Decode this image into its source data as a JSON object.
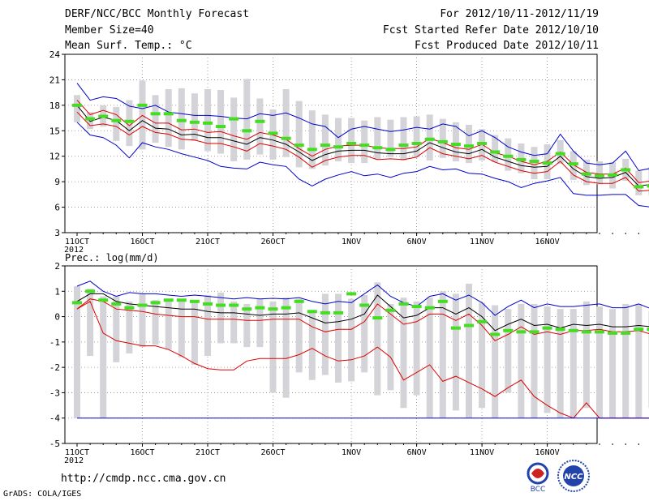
{
  "header": {
    "title": "DERF/NCC/BCC Monthly Forecast",
    "member_size": "Member Size=40",
    "variable": "Mean Surf. Temp.: °C",
    "period": "For 2012/10/11-2012/11/19",
    "fcst_started": "Fcst Started Refer Date 2012/10/10",
    "fcst_produced": "Fcst Produced Date 2012/10/11"
  },
  "footer": {
    "url": "http://cmdp.ncc.cma.gov.cn",
    "grads": "GrADS: COLA/IGES",
    "logo1_text": "BCC",
    "logo2_text": "NCC"
  },
  "colors": {
    "ensemble_mean": "#000000",
    "inner_band": "#dd0000",
    "outer_band": "#0000cc",
    "bar": "#d4d4d8",
    "marker": "#44dd22"
  },
  "chart_data": [
    {
      "type": "line",
      "title": "Mean Surf. Temp.: °C",
      "x_labels": [
        "11OCT\n2012",
        "16OCT",
        "21OCT",
        "26OCT",
        "1NOV",
        "6NOV",
        "11NOV",
        "16NOV"
      ],
      "ylim": [
        3,
        24
      ],
      "yticks": [
        3,
        6,
        9,
        12,
        15,
        18,
        21,
        24
      ],
      "series": [
        {
          "name": "max",
          "color": "#0000cc",
          "values": [
            20.6,
            18.6,
            19,
            18.8,
            17.9,
            17.6,
            18,
            17.2,
            17,
            16.8,
            16.8,
            16.7,
            16.5,
            16.4,
            17,
            16.8,
            17.1,
            16.5,
            15.8,
            15.5,
            14.2,
            15.2,
            15.5,
            15.2,
            14.9,
            15.1,
            15.4,
            15.2,
            15.8,
            15.5,
            14.4,
            15,
            14.2,
            13.1,
            12.5,
            12.1,
            12.3,
            14.6,
            12.6,
            11.2,
            11,
            11.2,
            12.6,
            10.3,
            10.6,
            10.9
          ]
        },
        {
          "name": "upper",
          "color": "#dd0000",
          "values": [
            18.6,
            16.9,
            17.4,
            16.9,
            15.6,
            16.8,
            15.9,
            15.9,
            15.1,
            15.2,
            14.8,
            14.9,
            14.4,
            14,
            14.8,
            14.5,
            14,
            12.9,
            12,
            12.8,
            13.2,
            13.3,
            13.3,
            13,
            12.9,
            12.9,
            13.1,
            14.1,
            13.6,
            13,
            12.8,
            13.4,
            12.4,
            12,
            11.4,
            11,
            11.4,
            12.5,
            11,
            10.1,
            9.9,
            9.9,
            10.6,
            8.9,
            9.1,
            8.6
          ]
        },
        {
          "name": "mean",
          "color": "#000000",
          "values": [
            18,
            16.1,
            16.6,
            16.2,
            15,
            16.2,
            15.3,
            15.2,
            14.5,
            14.6,
            14.2,
            14.2,
            13.8,
            13.4,
            14.2,
            13.9,
            13.4,
            12.5,
            11.5,
            12.2,
            12.6,
            12.7,
            12.7,
            12.4,
            12.3,
            12.3,
            12.6,
            13.6,
            13,
            12.5,
            12.3,
            12.8,
            11.9,
            11.4,
            10.9,
            10.7,
            10.8,
            12,
            10.5,
            9.6,
            9.4,
            9.5,
            10.1,
            8.5,
            8.7,
            8.2
          ]
        },
        {
          "name": "lower",
          "color": "#dd0000",
          "values": [
            17.2,
            15.6,
            15.8,
            15.5,
            14.5,
            15.5,
            14.8,
            14.6,
            14,
            13.9,
            13.5,
            13.5,
            13.1,
            12.6,
            13.5,
            13.2,
            12.8,
            11.9,
            10.7,
            11.5,
            11.9,
            12.1,
            12.1,
            11.6,
            11.7,
            11.6,
            11.9,
            13,
            12.3,
            12,
            11.7,
            12.1,
            11.3,
            10.8,
            10.3,
            10,
            10.2,
            11.4,
            9.8,
            9,
            8.8,
            8.8,
            9.5,
            7.9,
            8,
            7.7
          ]
        },
        {
          "name": "min",
          "color": "#0000cc",
          "values": [
            16,
            14.5,
            14.2,
            13.3,
            11.8,
            13.6,
            13.1,
            12.8,
            12.3,
            11.9,
            11.5,
            10.8,
            10.6,
            10.5,
            11.3,
            11,
            10.8,
            9.3,
            8.5,
            9.3,
            9.8,
            10.2,
            9.7,
            9.9,
            9.5,
            10,
            10.2,
            10.8,
            10.4,
            10.5,
            10,
            9.9,
            9.4,
            9,
            8.3,
            8.8,
            9.1,
            9.5,
            7.6,
            7.4,
            7.4,
            7.5,
            7.5,
            6.2,
            6,
            5.8
          ]
        }
      ],
      "bars_low": [
        16,
        15.2,
        15.5,
        13.8,
        13.2,
        12.8,
        13.6,
        13.1,
        12.8,
        13.8,
        12.6,
        12.3,
        11.4,
        11.6,
        12.2,
        11.6,
        11.9,
        10.7,
        10.5,
        10.9,
        11.4,
        11.2,
        11.2,
        11.6,
        11.9,
        11.5,
        11.9,
        11.5,
        11.8,
        11.4,
        11.2,
        11.5,
        11.3,
        10.3,
        10,
        9.3,
        9.3,
        11.1,
        9.2,
        8.6,
        8.7,
        8.2,
        9.1,
        7.4,
        7.4,
        7.2
      ],
      "bars_high": [
        19.2,
        17.2,
        18,
        17.8,
        18.6,
        20.9,
        19.2,
        19.9,
        20,
        19.4,
        19.9,
        19.8,
        18.9,
        21.1,
        18.8,
        17.5,
        19.9,
        18.5,
        17.4,
        16.9,
        16.5,
        16.5,
        16.2,
        16.6,
        16.3,
        16.6,
        16.7,
        16.9,
        16.4,
        16,
        15.7,
        15.2,
        14.5,
        14.1,
        13.5,
        13.1,
        13.4,
        13.9,
        12.6,
        11.6,
        11.4,
        11.3,
        11.7,
        10.3,
        10.7,
        10.1
      ],
      "markers": [
        18,
        16.4,
        16.7,
        16.2,
        16.1,
        18,
        17,
        17,
        16.2,
        16,
        15.9,
        15.5,
        16.4,
        15,
        16.1,
        14.7,
        14.1,
        13.3,
        12.8,
        13.3,
        13.1,
        13.5,
        13.3,
        13,
        12.8,
        13.3,
        13.5,
        14,
        13.7,
        13.4,
        13.2,
        13.5,
        12.5,
        12,
        11.6,
        11.4,
        11.2,
        12.3,
        11.1,
        9.9,
        9.7,
        9.8,
        10.4,
        8.4,
        8.5,
        8.7
      ]
    },
    {
      "type": "line",
      "title": "Prec.: log(mm/d)",
      "x_labels": [
        "11OCT\n2012",
        "16OCT",
        "21OCT",
        "26OCT",
        "1NOV",
        "6NOV",
        "11NOV",
        "16NOV"
      ],
      "ylim": [
        -5,
        2
      ],
      "yticks": [
        -5,
        -4,
        -3,
        -2,
        -1,
        0,
        1,
        2
      ],
      "series": [
        {
          "name": "max",
          "color": "#0000cc",
          "values": [
            1.2,
            1.4,
            1,
            0.8,
            0.95,
            0.9,
            0.9,
            0.85,
            0.8,
            0.85,
            0.8,
            0.75,
            0.7,
            0.75,
            0.7,
            0.72,
            0.7,
            0.75,
            0.6,
            0.5,
            0.6,
            0.55,
            0.9,
            1.25,
            0.8,
            0.55,
            0.4,
            0.8,
            0.9,
            0.65,
            0.85,
            0.55,
            0.05,
            0.4,
            0.65,
            0.35,
            0.5,
            0.4,
            0.4,
            0.45,
            0.5,
            0.35,
            0.35,
            0.5,
            0.3,
            0.3
          ]
        },
        {
          "name": "upper",
          "color": "#dd0000",
          "values": [
            0.3,
            0.7,
            0.6,
            0.3,
            0.25,
            0.2,
            0.1,
            0.05,
            0,
            0,
            -0.1,
            -0.1,
            -0.1,
            -0.15,
            -0.15,
            -0.1,
            -0.1,
            -0.1,
            -0.4,
            -0.6,
            -0.5,
            -0.5,
            -0.2,
            0.5,
            0.1,
            -0.3,
            -0.2,
            0.1,
            0.1,
            -0.15,
            0.1,
            -0.35,
            -0.95,
            -0.7,
            -0.4,
            -0.7,
            -0.6,
            -0.7,
            -0.55,
            -0.55,
            -0.5,
            -0.6,
            -0.6,
            -0.55,
            -0.7,
            -0.85
          ]
        },
        {
          "name": "mean",
          "color": "#000000",
          "values": [
            0.6,
            0.9,
            0.9,
            0.6,
            0.5,
            0.45,
            0.4,
            0.35,
            0.3,
            0.3,
            0.2,
            0.15,
            0.15,
            0.1,
            0.05,
            0.1,
            0.1,
            0.15,
            -0.05,
            -0.25,
            -0.2,
            -0.1,
            0.1,
            0.85,
            0.4,
            -0.05,
            0.05,
            0.35,
            0.35,
            0.1,
            0.35,
            0,
            -0.55,
            -0.3,
            -0.1,
            -0.35,
            -0.3,
            -0.45,
            -0.3,
            -0.35,
            -0.3,
            -0.4,
            -0.4,
            -0.35,
            -0.4,
            -0.6
          ]
        },
        {
          "name": "lower",
          "color": "#dd0000",
          "values": [
            0.3,
            0.6,
            -0.65,
            -0.95,
            -1.05,
            -1.15,
            -1.15,
            -1.3,
            -1.55,
            -1.85,
            -2.05,
            -2.1,
            -2.1,
            -1.75,
            -1.65,
            -1.65,
            -1.65,
            -1.5,
            -1.25,
            -1.55,
            -1.75,
            -1.7,
            -1.55,
            -1.2,
            -1.6,
            -2.5,
            -2.2,
            -1.9,
            -2.55,
            -2.35,
            -2.6,
            -2.85,
            -3.15,
            -2.8,
            -2.5,
            -3.15,
            -3.5,
            -3.8,
            -4,
            -3.4,
            -4,
            -4,
            -4,
            -4,
            -4,
            -4
          ]
        },
        {
          "name": "min",
          "color": "#0000cc",
          "values": [
            -4,
            -4,
            -4,
            -4,
            -4,
            -4,
            -4,
            -4,
            -4,
            -4,
            -4,
            -4,
            -4,
            -4,
            -4,
            -4,
            -4,
            -4,
            -4,
            -4,
            -4,
            -4,
            -4,
            -4,
            -4,
            -4,
            -4,
            -4,
            -4,
            -4,
            -4,
            -4,
            -4,
            -4,
            -4,
            -4,
            -4,
            -4,
            -4,
            -4,
            -4,
            -4,
            -4,
            -4,
            -4,
            -4
          ]
        }
      ],
      "bars_low": [
        -4,
        -1.55,
        -4,
        -1.8,
        -1.45,
        -1.2,
        -1.1,
        -1.3,
        -1.6,
        -1.9,
        -1.55,
        -1.05,
        -1.05,
        -1.2,
        -1.2,
        -3,
        -3.2,
        -2.2,
        -2.5,
        -2.3,
        -2.6,
        -2.55,
        -2.2,
        -3.1,
        -2.9,
        -3.6,
        -3.1,
        -4,
        -4,
        -3.7,
        -4,
        -3.6,
        -4,
        -3,
        -4,
        -4,
        -3.8,
        -4,
        -4,
        -3.6,
        -4,
        -4,
        -4,
        -4,
        -3.6,
        -4
      ],
      "bars_high": [
        1.2,
        1.1,
        0.8,
        0.8,
        0.6,
        0.9,
        0.65,
        0.65,
        0.7,
        0.6,
        0.85,
        0.95,
        0.6,
        0.5,
        0.7,
        0.6,
        0.75,
        0.7,
        0.25,
        0.9,
        0.9,
        0.7,
        0.85,
        1.35,
        0.5,
        0.75,
        0.6,
        0.75,
        1,
        0.9,
        1.3,
        0.55,
        0.45,
        0.3,
        0.5,
        0.5,
        0.4,
        0.3,
        0.3,
        0.6,
        0.4,
        0.3,
        0.5,
        0.5,
        0.2,
        0.3
      ],
      "markers": [
        0.55,
        1,
        0.65,
        0.5,
        0.35,
        0.45,
        0.55,
        0.65,
        0.65,
        0.6,
        0.5,
        0.45,
        0.45,
        0.3,
        0.35,
        0.3,
        0.35,
        0.6,
        0.2,
        0.15,
        0.15,
        0.9,
        0.45,
        -0.05,
        0.25,
        0.5,
        0.4,
        0.35,
        0.6,
        -0.45,
        -0.35,
        -0.2,
        -0.7,
        -0.55,
        -0.6,
        -0.6,
        -0.45,
        -0.5,
        -0.55,
        -0.6,
        -0.6,
        -0.65,
        -0.65,
        -0.5,
        -0.5,
        -0.6
      ]
    }
  ]
}
